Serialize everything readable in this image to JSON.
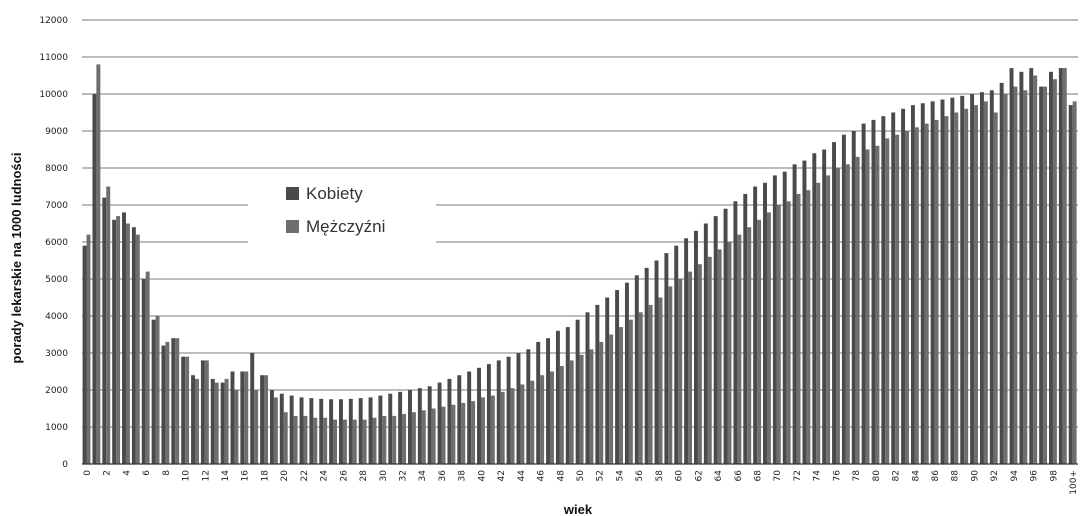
{
  "chart_data": {
    "type": "bar",
    "xlabel": "wiek",
    "ylabel": "porady lekarskie na 1000 ludności",
    "ylim": [
      0,
      12000
    ],
    "yticks": [
      0,
      1000,
      2000,
      3000,
      4000,
      5000,
      6000,
      7000,
      8000,
      9000,
      10000,
      11000,
      12000
    ],
    "grid": true,
    "legend_position": "upper-left",
    "categories": [
      "0",
      "1",
      "2",
      "3",
      "4",
      "5",
      "6",
      "7",
      "8",
      "9",
      "10",
      "11",
      "12",
      "13",
      "14",
      "15",
      "16",
      "17",
      "18",
      "19",
      "20",
      "21",
      "22",
      "23",
      "24",
      "25",
      "26",
      "27",
      "28",
      "29",
      "30",
      "31",
      "32",
      "33",
      "34",
      "35",
      "36",
      "37",
      "38",
      "39",
      "40",
      "41",
      "42",
      "43",
      "44",
      "45",
      "46",
      "47",
      "48",
      "49",
      "50",
      "51",
      "52",
      "53",
      "54",
      "55",
      "56",
      "57",
      "58",
      "59",
      "60",
      "61",
      "62",
      "63",
      "64",
      "65",
      "66",
      "67",
      "68",
      "69",
      "70",
      "71",
      "72",
      "73",
      "74",
      "75",
      "76",
      "77",
      "78",
      "79",
      "80",
      "81",
      "82",
      "83",
      "84",
      "85",
      "86",
      "87",
      "88",
      "89",
      "90",
      "91",
      "92",
      "93",
      "94",
      "95",
      "96",
      "97",
      "98",
      "99",
      "100+"
    ],
    "series": [
      {
        "name": "Kobiety",
        "color": "#4a4a4a",
        "values": [
          5900,
          10000,
          7200,
          6600,
          6800,
          6400,
          5000,
          3900,
          3200,
          3400,
          2900,
          2400,
          2800,
          2300,
          2200,
          2500,
          2500,
          3000,
          2400,
          2000,
          1900,
          1850,
          1800,
          1780,
          1760,
          1750,
          1750,
          1760,
          1780,
          1800,
          1850,
          1900,
          1950,
          2000,
          2050,
          2100,
          2200,
          2300,
          2400,
          2500,
          2600,
          2700,
          2800,
          2900,
          3000,
          3100,
          3300,
          3400,
          3600,
          3700,
          3900,
          4100,
          4300,
          4500,
          4700,
          4900,
          5100,
          5300,
          5500,
          5700,
          5900,
          6100,
          6300,
          6500,
          6700,
          6900,
          7100,
          7300,
          7500,
          7600,
          7800,
          7900,
          8100,
          8200,
          8400,
          8500,
          8700,
          8900,
          9000,
          9200,
          9300,
          9400,
          9500,
          9600,
          9700,
          9750,
          9800,
          9850,
          9900,
          9950,
          10000,
          10050,
          10100,
          10300,
          10700,
          10600,
          10700,
          10200,
          10600,
          10700,
          9700
        ]
      },
      {
        "name": "Mężczyźni",
        "color": "#6e6e6e",
        "values": [
          6200,
          10800,
          7500,
          6700,
          6500,
          6200,
          5200,
          4000,
          3300,
          3400,
          2900,
          2300,
          2800,
          2200,
          2300,
          2000,
          2500,
          2000,
          2400,
          1800,
          1400,
          1300,
          1300,
          1250,
          1250,
          1200,
          1200,
          1200,
          1200,
          1250,
          1300,
          1300,
          1350,
          1400,
          1450,
          1500,
          1550,
          1600,
          1650,
          1700,
          1800,
          1850,
          1950,
          2050,
          2150,
          2250,
          2400,
          2500,
          2650,
          2800,
          2950,
          3100,
          3300,
          3500,
          3700,
          3900,
          4100,
          4300,
          4500,
          4800,
          5000,
          5200,
          5400,
          5600,
          5800,
          6000,
          6200,
          6400,
          6600,
          6800,
          7000,
          7100,
          7300,
          7400,
          7600,
          7800,
          8000,
          8100,
          8300,
          8500,
          8600,
          8800,
          8900,
          9000,
          9100,
          9200,
          9300,
          9400,
          9500,
          9600,
          9700,
          9800,
          9500,
          10000,
          10200,
          10100,
          10500,
          10200,
          10400,
          10700,
          9800
        ]
      }
    ]
  }
}
